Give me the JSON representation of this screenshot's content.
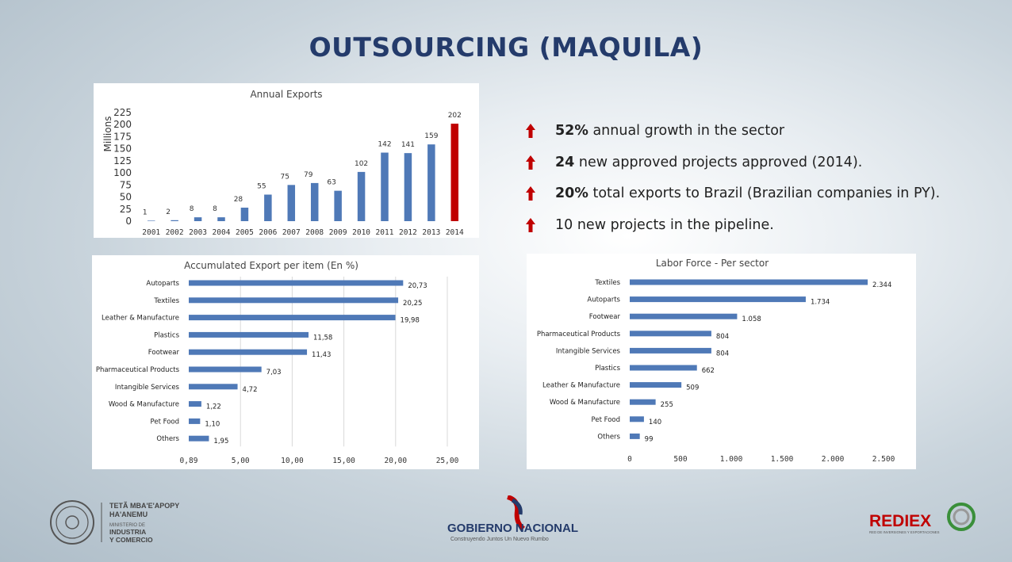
{
  "title": "OUTSOURCING (MAQUILA)",
  "colors": {
    "bar": "#4f79b7",
    "highlight": "#c00000",
    "title": "#243b6b",
    "arrow": "#c00000"
  },
  "bullets": [
    {
      "bold": "52%",
      "text": " annual growth in the sector"
    },
    {
      "bold": "24",
      "text": "  new approved projects approved (2014)."
    },
    {
      "bold": "20%",
      "text": " total exports to Brazil (Brazilian companies in PY)."
    },
    {
      "bold": "",
      "text": "10 new projects in the pipeline."
    }
  ],
  "chart_data": [
    {
      "type": "bar",
      "title": "Annual Exports",
      "ylabel": "Millions",
      "categories": [
        "2001",
        "2002",
        "2003",
        "2004",
        "2005",
        "2006",
        "2007",
        "2008",
        "2009",
        "2010",
        "2011",
        "2012",
        "2013",
        "2014"
      ],
      "values": [
        1,
        2,
        8,
        8,
        28,
        55,
        75,
        79,
        63,
        102,
        142,
        141,
        159,
        202
      ],
      "highlight_category": "2014",
      "ylim": [
        0,
        225
      ],
      "yticks": [
        "225",
        "200",
        "175",
        "150",
        "125",
        "100",
        "75",
        "50",
        "25",
        "0"
      ],
      "grid": false
    },
    {
      "type": "bar",
      "orientation": "horizontal",
      "title": "Accumulated Export per item (En %)",
      "categories": [
        "Autoparts",
        "Textiles",
        "Leather & Manufacture",
        "Plastics",
        "Footwear",
        "Pharmaceutical Products",
        "Intangible Services",
        "Wood & Manufacture",
        "Pet Food",
        "Others"
      ],
      "values": [
        20.73,
        20.25,
        19.98,
        11.58,
        11.43,
        7.03,
        4.72,
        1.22,
        1.1,
        1.95
      ],
      "value_labels": [
        "20,73",
        "20,25",
        "19,98",
        "11,58",
        "11,43",
        "7,03",
        "4,72",
        "1,22",
        "1,10",
        "1,95"
      ],
      "xticks": [
        "0,89",
        "5,00",
        "10,00",
        "15,00",
        "20,00",
        "25,00"
      ],
      "xlim": [
        0,
        25
      ],
      "grid": true
    },
    {
      "type": "bar",
      "orientation": "horizontal",
      "title": "Labor Force - Per sector",
      "categories": [
        "Textiles",
        "Autoparts",
        "Footwear",
        "Pharmaceutical Products",
        "Intangible Services",
        "Plastics",
        "Leather & Manufacture",
        "Wood & Manufacture",
        "Pet Food",
        "Others"
      ],
      "values": [
        2344,
        1734,
        1058,
        804,
        804,
        662,
        509,
        255,
        140,
        99
      ],
      "value_labels": [
        "2.344",
        "1.734",
        "1.058",
        "804",
        "804",
        "662",
        "509",
        "255",
        "140",
        "99"
      ],
      "xticks": [
        "0",
        "500",
        "1.000",
        "1.500",
        "2.000",
        "2.500"
      ],
      "xlim": [
        0,
        2500
      ],
      "grid": false
    }
  ],
  "logos": {
    "ministry": {
      "line1": "TETÃ MBA'E'APOPY",
      "line2": "HA'ANEMU",
      "line3": "MINISTERIO DE",
      "line4": "INDUSTRIA",
      "line5": "Y COMERCIO"
    },
    "government": {
      "name": "GOBIERNO NACIONAL",
      "tagline": "Construyendo Juntos Un Nuevo Rumbo"
    },
    "rediex": {
      "name": "REDIEX",
      "tagline": "RED DE INVERSIONES Y EXPORTACIONES"
    }
  }
}
